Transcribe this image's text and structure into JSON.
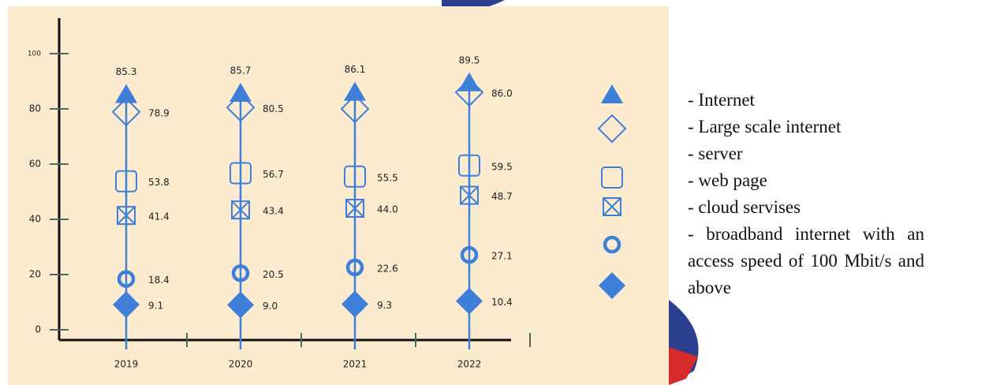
{
  "chart_data": {
    "type": "dotline",
    "categories": [
      "2019",
      "2020",
      "2021",
      "2022"
    ],
    "ylim": [
      0,
      110
    ],
    "yticks": [
      0,
      20,
      40,
      60,
      80,
      100
    ],
    "series": [
      {
        "name": "- Internet",
        "color": "#3d7fd9",
        "marker": "triangle",
        "values": [
          85.3,
          85.7,
          86.1,
          89.5
        ],
        "value_labels": [
          "85.3",
          "85.7",
          "86.1",
          "89.5"
        ]
      },
      {
        "name": "- Large scale internet",
        "color": "#3d7fd9",
        "marker": "diamond-open",
        "values": [
          78.9,
          80.5,
          80.0,
          86.0
        ],
        "value_labels": [
          "78.9",
          "80.5",
          null,
          "86.0"
        ]
      },
      {
        "name": "- server",
        "color": "#3d7fd9",
        "marker": "square-open",
        "values": [
          53.8,
          56.7,
          55.5,
          59.5
        ],
        "value_labels": [
          "53.8",
          "56.7",
          "55.5",
          "59.5"
        ]
      },
      {
        "name": "- web page",
        "color": "#3d7fd9",
        "marker": "square-x",
        "values": [
          41.4,
          43.4,
          44.0,
          48.7
        ],
        "value_labels": [
          "41.4",
          "43.4",
          "44.0",
          "48.7"
        ]
      },
      {
        "name": "- cloud servises",
        "color": "#3d7fd9",
        "marker": "circle-open",
        "values": [
          18.4,
          20.5,
          22.6,
          27.1
        ],
        "value_labels": [
          "18.4",
          "20.5",
          "22.6",
          "27.1"
        ]
      },
      {
        "name": "- broadband internet with an access speed of 100 Mbit/s and above",
        "color": "#3d7fd9",
        "marker": "diamond",
        "values": [
          9.1,
          9.0,
          9.3,
          10.4
        ],
        "value_labels": [
          "9.1",
          "9.0",
          "9.3",
          "10.4"
        ]
      }
    ]
  }
}
